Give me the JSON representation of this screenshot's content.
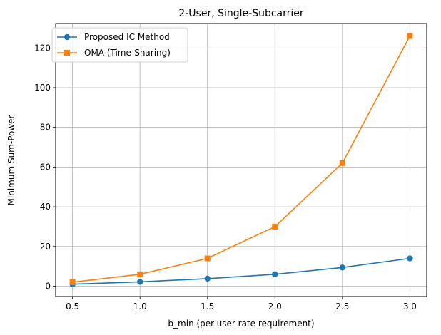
{
  "chart_data": {
    "type": "line",
    "title": "2-User, Single-Subcarrier",
    "xlabel": "b_min (per-user rate requirement)",
    "ylabel": "Minimum Sum-Power",
    "x": [
      0.5,
      1.0,
      1.5,
      2.0,
      2.5,
      3.0
    ],
    "xlim": [
      0.375,
      3.125
    ],
    "ylim": [
      -5.2,
      132.3
    ],
    "xticks": [
      0.5,
      1.0,
      1.5,
      2.0,
      2.5,
      3.0
    ],
    "xtick_labels": [
      "0.5",
      "1.0",
      "1.5",
      "2.0",
      "2.5",
      "3.0"
    ],
    "yticks": [
      0,
      20,
      40,
      60,
      80,
      100,
      120
    ],
    "ytick_labels": [
      "0",
      "20",
      "40",
      "60",
      "80",
      "100",
      "120"
    ],
    "grid": true,
    "legend_position": "top-left",
    "series": [
      {
        "name": "Proposed IC Method",
        "values": [
          1.0,
          2.2,
          3.8,
          6.0,
          9.4,
          14.0
        ],
        "color": "#1f77b4",
        "marker": "circle"
      },
      {
        "name": "OMA (Time-Sharing)",
        "values": [
          2.0,
          6.0,
          14.0,
          30.0,
          62.0,
          126.0
        ],
        "color": "#ff7f0e",
        "marker": "square"
      }
    ]
  }
}
